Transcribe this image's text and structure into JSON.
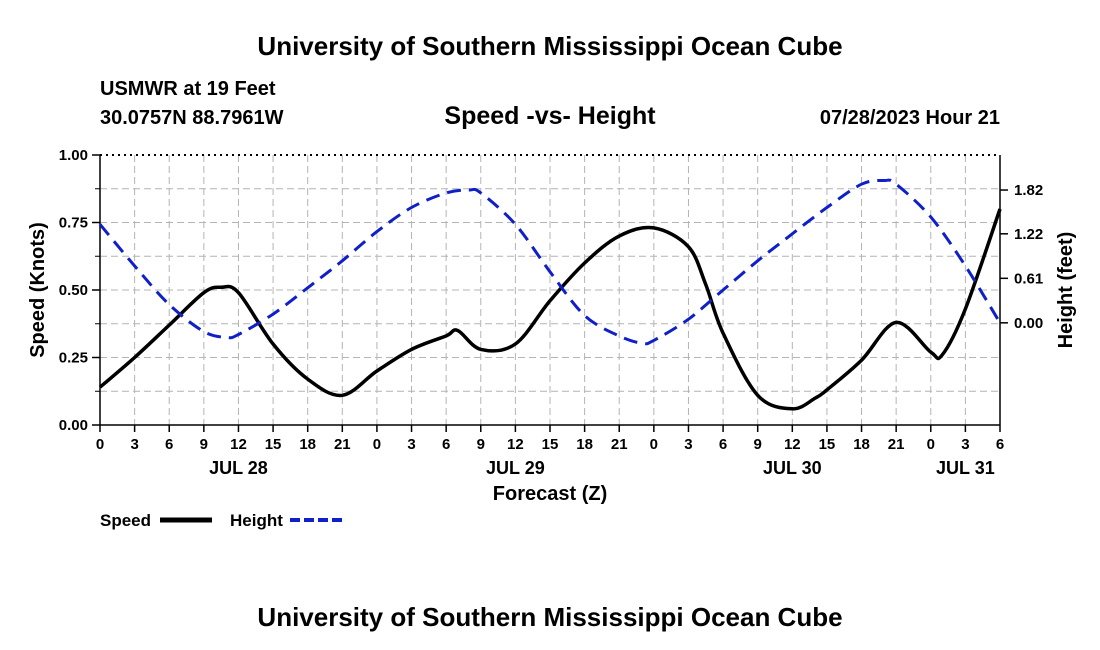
{
  "header": {
    "title": "University of Southern Mississippi Ocean Cube",
    "station": "USMWR at 19 Feet",
    "coords": "30.0757N  88.7961W",
    "issued": "07/28/2023 Hour 21",
    "footer_title": "University of Southern Mississippi Ocean Cube"
  },
  "chart_data": {
    "type": "line",
    "title": "Speed -vs- Height",
    "xlabel": "Forecast (Z)",
    "ylabel": "Speed (Knots)",
    "y2label": "Height (feet)",
    "x_range_hours": [
      0,
      78
    ],
    "ylim": [
      0,
      1
    ],
    "y_ticks": [
      0.0,
      0.25,
      0.5,
      0.75,
      1.0
    ],
    "y_tick_labels": [
      "0.00",
      "0.25",
      "0.50",
      "0.75",
      "1.00"
    ],
    "y2lim": [
      -1.4,
      2.3
    ],
    "y2_ticks": [
      0.0,
      0.61,
      1.22,
      1.82
    ],
    "y2_tick_labels": [
      "0.00",
      "0.61",
      "1.22",
      "1.82"
    ],
    "x_ticks_hours": [
      0,
      3,
      6,
      9,
      12,
      15,
      18,
      21,
      24,
      27,
      30,
      33,
      36,
      39,
      42,
      45,
      48,
      51,
      54,
      57,
      60,
      63,
      66,
      69,
      72,
      75,
      78
    ],
    "x_tick_labels": [
      "0",
      "3",
      "6",
      "9",
      "12",
      "15",
      "18",
      "21",
      "0",
      "3",
      "6",
      "9",
      "12",
      "15",
      "18",
      "21",
      "0",
      "3",
      "6",
      "9",
      "12",
      "15",
      "18",
      "21",
      "0",
      "3",
      "6"
    ],
    "date_labels": [
      {
        "label": "JUL 28",
        "hour": 12
      },
      {
        "label": "JUL 29",
        "hour": 36
      },
      {
        "label": "JUL 30",
        "hour": 60
      },
      {
        "label": "JUL 31",
        "hour": 75
      }
    ],
    "grid": true,
    "legend": "bottom-left",
    "series": [
      {
        "name": "Speed",
        "color": "#000000",
        "axis": "left",
        "x": [
          0,
          3,
          6,
          9,
          10.5,
          12,
          15,
          18,
          21,
          24,
          27,
          30,
          31,
          33,
          36,
          39,
          42,
          45,
          48,
          51,
          52.5,
          54,
          57,
          60,
          62,
          63,
          66,
          69,
          72,
          73,
          75,
          78
        ],
        "y": [
          0.14,
          0.25,
          0.37,
          0.49,
          0.51,
          0.49,
          0.3,
          0.17,
          0.11,
          0.2,
          0.28,
          0.33,
          0.35,
          0.28,
          0.3,
          0.46,
          0.6,
          0.7,
          0.73,
          0.66,
          0.52,
          0.34,
          0.11,
          0.06,
          0.1,
          0.13,
          0.24,
          0.38,
          0.27,
          0.26,
          0.43,
          0.8
        ]
      },
      {
        "name": "Height",
        "color": "#1020c8",
        "axis": "right",
        "x": [
          0,
          3,
          6,
          9,
          11,
          12,
          15,
          18,
          21,
          24,
          27,
          30,
          32,
          33,
          36,
          39,
          42,
          45,
          47,
          48,
          51,
          54,
          57,
          60,
          63,
          66,
          68,
          69,
          72,
          75,
          78
        ],
        "y": [
          1.35,
          0.78,
          0.25,
          -0.12,
          -0.2,
          -0.16,
          0.12,
          0.48,
          0.85,
          1.25,
          1.58,
          1.78,
          1.82,
          1.78,
          1.35,
          0.7,
          0.1,
          -0.18,
          -0.28,
          -0.24,
          0.05,
          0.45,
          0.85,
          1.22,
          1.58,
          1.9,
          1.95,
          1.9,
          1.45,
          0.78,
          0.0
        ]
      }
    ]
  }
}
